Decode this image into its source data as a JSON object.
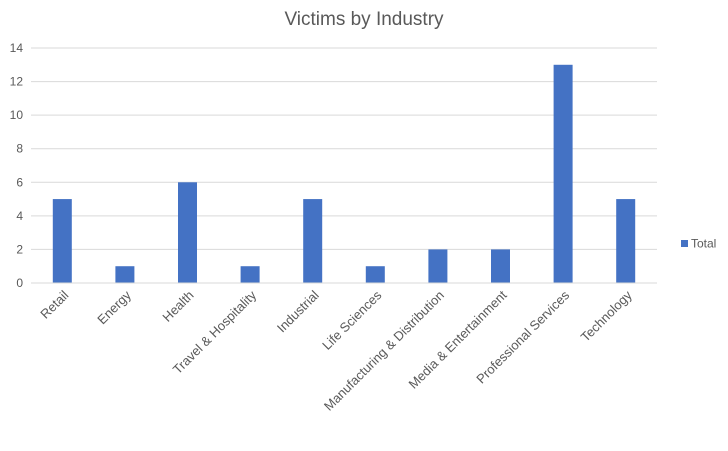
{
  "chart_data": {
    "type": "bar",
    "title": "Victims by Industry",
    "categories": [
      "Retail",
      "Energy",
      "Health",
      "Travel & Hospitality",
      "Industrial",
      "Life Sciences",
      "Manufacturing & Distribution",
      "Media & Entertainment",
      "Professional Services",
      "Technology"
    ],
    "series": [
      {
        "name": "Total",
        "values": [
          5,
          1,
          6,
          1,
          5,
          1,
          2,
          2,
          13,
          5
        ],
        "color": "#4472c4"
      }
    ],
    "ylim": [
      0,
      14
    ],
    "yticks": [
      0,
      2,
      4,
      6,
      8,
      10,
      12,
      14
    ],
    "grid": true,
    "legend": "right"
  }
}
